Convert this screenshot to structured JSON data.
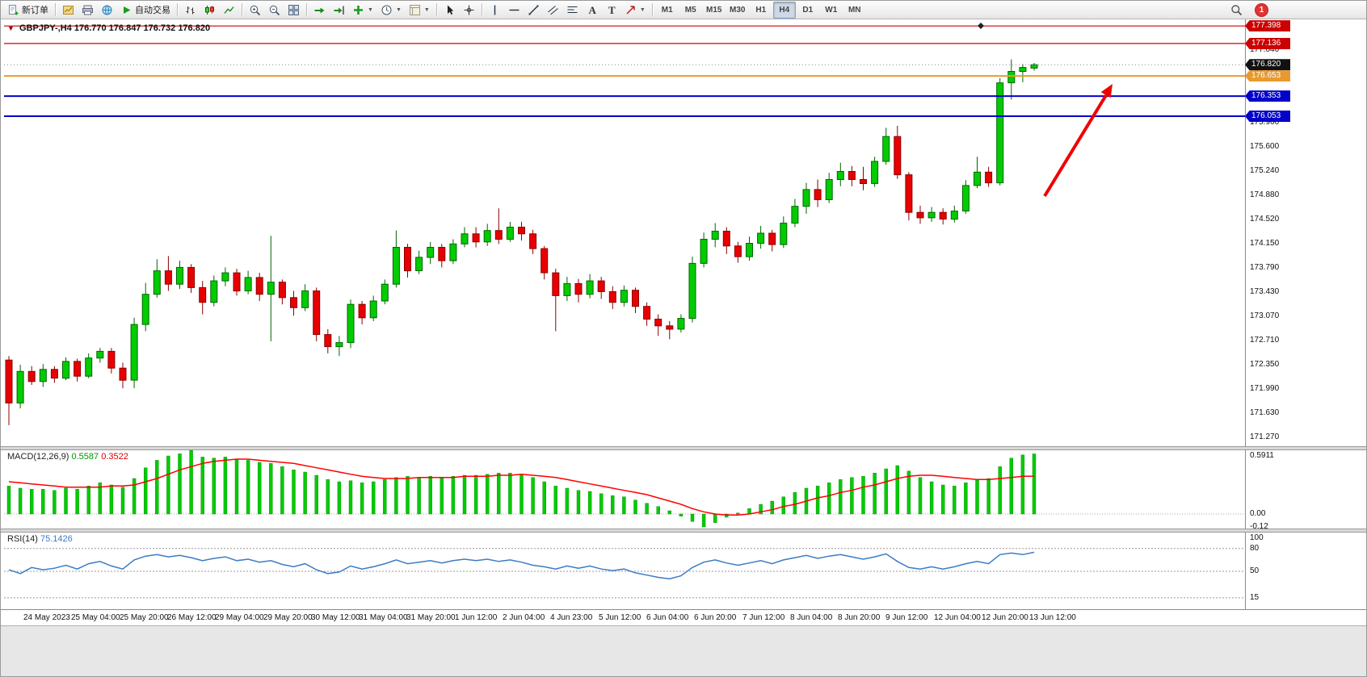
{
  "toolbar": {
    "groups": [
      {
        "items": [
          {
            "name": "new-order-button",
            "icon": "new-order",
            "label": "新订单"
          }
        ]
      },
      {
        "items": [
          {
            "name": "new-chart-button",
            "icon": "chart-gold"
          },
          {
            "name": "print-button",
            "icon": "printer"
          },
          {
            "name": "community-button",
            "icon": "globe"
          },
          {
            "name": "autotrading-button",
            "icon": "play",
            "label": "自动交易"
          }
        ]
      },
      {
        "items": [
          {
            "name": "bar-chart-button",
            "icon": "bars"
          },
          {
            "name": "candlestick-chart-button",
            "icon": "candles"
          },
          {
            "name": "line-chart-button",
            "icon": "line-chart"
          }
        ]
      },
      {
        "items": [
          {
            "name": "zoom-in-button",
            "icon": "zoom-in"
          },
          {
            "name": "zoom-out-button",
            "icon": "zoom-out"
          },
          {
            "name": "tile-windows-button",
            "icon": "tile"
          }
        ]
      },
      {
        "items": [
          {
            "name": "auto-scroll-button",
            "icon": "auto-scroll"
          },
          {
            "name": "chart-shift-button",
            "icon": "chart-shift"
          },
          {
            "name": "indicators-button",
            "icon": "indicators",
            "caret": true
          },
          {
            "name": "periods-button",
            "icon": "clock",
            "caret": true
          },
          {
            "name": "templates-button",
            "icon": "template",
            "caret": true
          }
        ]
      },
      {
        "items": [
          {
            "name": "cursor-button",
            "icon": "cursor"
          },
          {
            "name": "crosshair-button",
            "icon": "crosshair"
          }
        ]
      },
      {
        "items": [
          {
            "name": "vertical-line-button",
            "icon": "vline"
          },
          {
            "name": "horizontal-line-button",
            "icon": "hline"
          },
          {
            "name": "trendline-button",
            "icon": "trendline"
          },
          {
            "name": "equidistant-channel-button",
            "icon": "channel"
          },
          {
            "name": "fibonacci-button",
            "icon": "fibo"
          },
          {
            "name": "text-button",
            "icon": "text"
          },
          {
            "name": "text-label-button",
            "icon": "label"
          },
          {
            "name": "arrows-button",
            "icon": "arrow-obj",
            "caret": true
          }
        ]
      }
    ],
    "timefram_note": "timeframe buttons rendered from list below",
    "timeframes": [
      "M1",
      "M5",
      "M15",
      "M30",
      "H1",
      "H4",
      "D1",
      "W1",
      "MN"
    ],
    "active_timeframe": "H4",
    "notification_count": "1"
  },
  "chart": {
    "type": "candlestick",
    "symbol_period": "GBPJPY-,H4",
    "ohlc_text": "176.770 176.847 176.732 176.820",
    "colors": {
      "up": "#00CC00",
      "down": "#E80000",
      "background": "#FFFFFF",
      "wick_up": "#006600",
      "wick_down": "#8B0000"
    },
    "price_ticks": [
      "177.040",
      "176.680",
      "176.320",
      "175.960",
      "175.600",
      "175.240",
      "174.880",
      "174.520",
      "174.150",
      "173.790",
      "173.430",
      "173.070",
      "172.710",
      "172.350",
      "171.990",
      "171.630",
      "171.270"
    ],
    "hlines": [
      {
        "label": "177.398",
        "price": 177.398,
        "color": "#CC0000",
        "width": 1.2,
        "name": "resistance-line-1"
      },
      {
        "label": "177.136",
        "price": 177.136,
        "color": "#CC0000",
        "width": 1.2,
        "name": "resistance-line-2"
      },
      {
        "label": "176.653",
        "price": 176.653,
        "color": "#E89A2F",
        "width": 2,
        "name": "orange-level-line"
      },
      {
        "label": "176.353",
        "price": 176.353,
        "color": "#0202C8",
        "width": 2,
        "name": "blue-level-line-1"
      },
      {
        "label": "176.053",
        "price": 176.053,
        "color": "#0202C8",
        "width": 2,
        "name": "blue-level-line-2"
      }
    ],
    "bid": {
      "label": "176.820",
      "price": 176.82,
      "color": "#111111"
    },
    "arrow": {
      "color": "#F00000"
    },
    "time_labels": [
      "24 May 2023",
      "25 May 04:00",
      "25 May 20:00",
      "26 May 12:00",
      "29 May 04:00",
      "29 May 20:00",
      "30 May 12:00",
      "31 May 04:00",
      "31 May 20:00",
      "1 Jun 12:00",
      "2 Jun 04:00",
      "4 Jun 23:00",
      "5 Jun 12:00",
      "6 Jun 04:00",
      "6 Jun 20:00",
      "7 Jun 12:00",
      "8 Jun 04:00",
      "8 Jun 20:00",
      "9 Jun 12:00",
      "12 Jun 04:00",
      "12 Jun 20:00",
      "13 Jun 12:00"
    ],
    "candles": [
      [
        172.42,
        172.48,
        171.45,
        171.78
      ],
      [
        171.78,
        172.35,
        171.7,
        172.25
      ],
      [
        172.25,
        172.33,
        172.05,
        172.1
      ],
      [
        172.1,
        172.36,
        172.02,
        172.28
      ],
      [
        172.28,
        172.33,
        172.08,
        172.15
      ],
      [
        172.15,
        172.46,
        172.12,
        172.4
      ],
      [
        172.4,
        172.44,
        172.1,
        172.18
      ],
      [
        172.18,
        172.52,
        172.15,
        172.45
      ],
      [
        172.45,
        172.6,
        172.38,
        172.55
      ],
      [
        172.55,
        172.6,
        172.22,
        172.3
      ],
      [
        172.3,
        172.38,
        172.0,
        172.12
      ],
      [
        172.12,
        173.05,
        172.0,
        172.95
      ],
      [
        172.95,
        173.57,
        172.85,
        173.4
      ],
      [
        173.4,
        173.92,
        173.35,
        173.75
      ],
      [
        173.75,
        173.97,
        173.45,
        173.55
      ],
      [
        173.55,
        173.9,
        173.48,
        173.8
      ],
      [
        173.8,
        173.85,
        173.42,
        173.5
      ],
      [
        173.5,
        173.6,
        173.1,
        173.28
      ],
      [
        173.28,
        173.68,
        173.22,
        173.6
      ],
      [
        173.6,
        173.8,
        173.52,
        173.72
      ],
      [
        173.72,
        173.78,
        173.38,
        173.45
      ],
      [
        173.45,
        173.75,
        173.4,
        173.65
      ],
      [
        173.65,
        173.72,
        173.3,
        173.4
      ],
      [
        173.4,
        174.27,
        172.7,
        173.58
      ],
      [
        173.58,
        173.62,
        173.25,
        173.35
      ],
      [
        173.35,
        173.45,
        173.08,
        173.2
      ],
      [
        173.2,
        173.55,
        173.15,
        173.45
      ],
      [
        173.45,
        173.5,
        172.7,
        172.8
      ],
      [
        172.8,
        172.88,
        172.52,
        172.62
      ],
      [
        172.62,
        172.78,
        172.48,
        172.68
      ],
      [
        172.68,
        173.32,
        172.6,
        173.25
      ],
      [
        173.25,
        173.3,
        172.95,
        173.05
      ],
      [
        173.05,
        173.38,
        173.0,
        173.3
      ],
      [
        173.3,
        173.62,
        173.25,
        173.55
      ],
      [
        173.55,
        174.35,
        173.5,
        174.1
      ],
      [
        174.1,
        174.15,
        173.65,
        173.75
      ],
      [
        173.75,
        174.05,
        173.7,
        173.95
      ],
      [
        173.95,
        174.18,
        173.85,
        174.1
      ],
      [
        174.1,
        174.15,
        173.8,
        173.9
      ],
      [
        173.9,
        174.22,
        173.85,
        174.15
      ],
      [
        174.15,
        174.4,
        174.1,
        174.3
      ],
      [
        174.3,
        174.4,
        174.1,
        174.18
      ],
      [
        174.18,
        174.45,
        174.12,
        174.35
      ],
      [
        174.35,
        174.68,
        174.15,
        174.22
      ],
      [
        174.22,
        174.48,
        174.18,
        174.4
      ],
      [
        174.4,
        174.48,
        174.2,
        174.3
      ],
      [
        174.3,
        174.36,
        174.0,
        174.08
      ],
      [
        174.08,
        174.12,
        173.62,
        173.72
      ],
      [
        173.72,
        173.78,
        172.85,
        173.38
      ],
      [
        173.38,
        173.66,
        173.3,
        173.56
      ],
      [
        173.56,
        173.63,
        173.28,
        173.4
      ],
      [
        173.4,
        173.7,
        173.34,
        173.6
      ],
      [
        173.6,
        173.66,
        173.33,
        173.44
      ],
      [
        173.44,
        173.52,
        173.18,
        173.28
      ],
      [
        173.28,
        173.53,
        173.22,
        173.46
      ],
      [
        173.46,
        173.5,
        173.12,
        173.22
      ],
      [
        173.22,
        173.28,
        172.93,
        173.03
      ],
      [
        173.03,
        173.1,
        172.78,
        172.93
      ],
      [
        172.93,
        173.0,
        172.73,
        172.88
      ],
      [
        172.88,
        173.1,
        172.83,
        173.04
      ],
      [
        173.04,
        173.96,
        172.98,
        173.86
      ],
      [
        173.86,
        174.32,
        173.8,
        174.22
      ],
      [
        174.22,
        174.46,
        174.1,
        174.34
      ],
      [
        174.34,
        174.4,
        174.0,
        174.12
      ],
      [
        174.12,
        174.18,
        173.87,
        173.96
      ],
      [
        173.96,
        174.26,
        173.9,
        174.16
      ],
      [
        174.16,
        174.42,
        174.08,
        174.31
      ],
      [
        174.31,
        174.36,
        174.04,
        174.14
      ],
      [
        174.14,
        174.56,
        174.09,
        174.46
      ],
      [
        174.46,
        174.82,
        174.4,
        174.71
      ],
      [
        174.71,
        175.06,
        174.6,
        174.96
      ],
      [
        174.96,
        175.11,
        174.7,
        174.81
      ],
      [
        174.81,
        175.21,
        174.76,
        175.11
      ],
      [
        175.11,
        175.36,
        175.01,
        175.23
      ],
      [
        175.23,
        175.31,
        175.01,
        175.11
      ],
      [
        175.11,
        175.3,
        174.95,
        175.05
      ],
      [
        175.05,
        175.45,
        175.0,
        175.38
      ],
      [
        175.38,
        175.88,
        175.33,
        175.75
      ],
      [
        175.75,
        175.91,
        175.12,
        175.18
      ],
      [
        175.18,
        175.22,
        174.5,
        174.62
      ],
      [
        174.62,
        174.72,
        174.45,
        174.54
      ],
      [
        174.54,
        174.7,
        174.48,
        174.62
      ],
      [
        174.62,
        174.68,
        174.44,
        174.52
      ],
      [
        174.52,
        174.72,
        174.47,
        174.64
      ],
      [
        174.64,
        175.1,
        174.6,
        175.02
      ],
      [
        175.02,
        175.45,
        174.98,
        175.22
      ],
      [
        175.22,
        175.3,
        175.0,
        175.06
      ],
      [
        175.06,
        176.62,
        175.02,
        176.55
      ],
      [
        176.55,
        176.9,
        176.3,
        176.72
      ],
      [
        176.72,
        176.83,
        176.56,
        176.78
      ],
      [
        176.77,
        176.847,
        176.732,
        176.82
      ]
    ]
  },
  "macd": {
    "name": "MACD(12,26,9)",
    "main_value": "0.5587",
    "signal_value": "0.3522",
    "scale_labels": [
      "0.5911",
      "0.00",
      "-0.12"
    ],
    "scale_values": [
      0.5911,
      0,
      -0.12
    ],
    "colors": {
      "histogram": "#00CC00",
      "signal": "#FF0000"
    },
    "histogram": [
      0.26,
      0.24,
      0.23,
      0.23,
      0.22,
      0.24,
      0.23,
      0.26,
      0.29,
      0.27,
      0.25,
      0.33,
      0.43,
      0.5,
      0.54,
      0.56,
      0.5911,
      0.53,
      0.52,
      0.53,
      0.51,
      0.5,
      0.48,
      0.47,
      0.44,
      0.41,
      0.39,
      0.36,
      0.32,
      0.3,
      0.31,
      0.29,
      0.3,
      0.32,
      0.34,
      0.35,
      0.34,
      0.35,
      0.34,
      0.35,
      0.36,
      0.36,
      0.37,
      0.38,
      0.38,
      0.37,
      0.34,
      0.3,
      0.26,
      0.24,
      0.22,
      0.21,
      0.19,
      0.17,
      0.16,
      0.13,
      0.1,
      0.07,
      0.03,
      -0.02,
      -0.07,
      -0.12,
      -0.08,
      -0.03,
      0.01,
      0.05,
      0.09,
      0.12,
      0.16,
      0.2,
      0.24,
      0.26,
      0.29,
      0.32,
      0.34,
      0.35,
      0.38,
      0.42,
      0.45,
      0.4,
      0.34,
      0.3,
      0.27,
      0.26,
      0.29,
      0.32,
      0.33,
      0.44,
      0.52,
      0.55,
      0.5587
    ],
    "signal": [
      0.3,
      0.29,
      0.28,
      0.27,
      0.26,
      0.25,
      0.25,
      0.25,
      0.25,
      0.26,
      0.26,
      0.27,
      0.3,
      0.33,
      0.37,
      0.41,
      0.44,
      0.47,
      0.49,
      0.5,
      0.51,
      0.51,
      0.5,
      0.49,
      0.48,
      0.47,
      0.45,
      0.43,
      0.41,
      0.39,
      0.37,
      0.35,
      0.34,
      0.33,
      0.33,
      0.33,
      0.34,
      0.34,
      0.34,
      0.34,
      0.35,
      0.35,
      0.35,
      0.36,
      0.36,
      0.37,
      0.36,
      0.35,
      0.34,
      0.32,
      0.3,
      0.28,
      0.26,
      0.24,
      0.22,
      0.2,
      0.18,
      0.15,
      0.12,
      0.09,
      0.05,
      0.02,
      0.0,
      -0.01,
      -0.01,
      0.0,
      0.02,
      0.04,
      0.07,
      0.09,
      0.12,
      0.15,
      0.17,
      0.2,
      0.22,
      0.25,
      0.27,
      0.3,
      0.33,
      0.35,
      0.36,
      0.36,
      0.35,
      0.34,
      0.33,
      0.32,
      0.32,
      0.33,
      0.34,
      0.35,
      0.3522
    ]
  },
  "rsi": {
    "name": "RSI(14)",
    "value": "75.1426",
    "scale_labels": [
      "100",
      "80",
      "50",
      "15"
    ],
    "scale_values": [
      100,
      80,
      50,
      15
    ],
    "levels": [
      80,
      50,
      15
    ],
    "color": "#3B7CC4",
    "values": [
      52,
      47,
      55,
      52,
      54,
      58,
      53,
      60,
      63,
      57,
      53,
      65,
      70,
      72,
      69,
      71,
      68,
      64,
      67,
      69,
      64,
      66,
      62,
      64,
      59,
      56,
      60,
      52,
      47,
      49,
      57,
      53,
      56,
      60,
      65,
      60,
      62,
      64,
      61,
      64,
      66,
      64,
      66,
      63,
      65,
      62,
      58,
      56,
      53,
      57,
      54,
      57,
      53,
      51,
      53,
      48,
      45,
      42,
      40,
      44,
      55,
      62,
      65,
      61,
      58,
      61,
      64,
      60,
      65,
      68,
      71,
      67,
      70,
      72,
      69,
      66,
      69,
      73,
      63,
      55,
      53,
      56,
      53,
      56,
      60,
      63,
      60,
      72,
      74,
      72,
      75.1426
    ]
  }
}
